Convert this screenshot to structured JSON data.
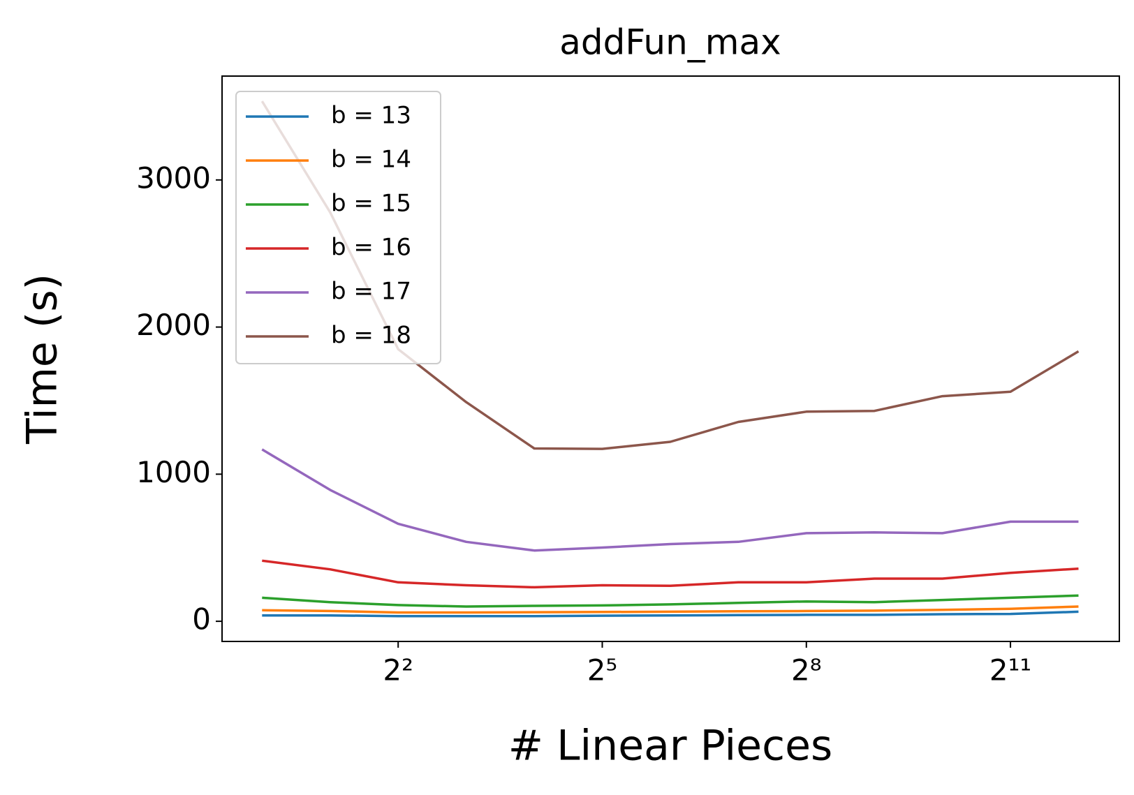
{
  "chart_data": {
    "type": "line",
    "title": "addFun_max",
    "x_label": "# Linear Pieces",
    "y_label": "Time (s)",
    "x": [
      1,
      2,
      4,
      8,
      16,
      32,
      64,
      128,
      256,
      512,
      1024,
      2048,
      4096
    ],
    "x_scale": "log",
    "x_log_base": 2,
    "xlim": [
      0.665,
      6210
    ],
    "xticks": [
      {
        "value": 4,
        "label": "2²"
      },
      {
        "value": 32,
        "label": "2⁵"
      },
      {
        "value": 256,
        "label": "2⁸"
      },
      {
        "value": 2048,
        "label": "2¹¹"
      }
    ],
    "ylim": [
      -137,
      3706
    ],
    "yticks": [
      0,
      1000,
      2000,
      3000
    ],
    "grid": false,
    "legend": "upper left",
    "series": [
      {
        "name": "b = 13",
        "color": "#1f77b4",
        "values": [
          40,
          40,
          35,
          35,
          35,
          38,
          40,
          42,
          44,
          44,
          48,
          50,
          65
        ]
      },
      {
        "name": "b = 14",
        "color": "#ff7f0e",
        "values": [
          75,
          70,
          60,
          60,
          62,
          63,
          65,
          68,
          70,
          72,
          78,
          85,
          100
        ]
      },
      {
        "name": "b = 15",
        "color": "#2ca02c",
        "values": [
          160,
          130,
          110,
          100,
          105,
          108,
          115,
          125,
          135,
          130,
          145,
          160,
          175
        ]
      },
      {
        "name": "b = 16",
        "color": "#d62728",
        "values": [
          412,
          353,
          265,
          245,
          231,
          245,
          241,
          265,
          265,
          290,
          290,
          329,
          358
        ]
      },
      {
        "name": "b = 17",
        "color": "#9467bd",
        "values": [
          1168,
          893,
          663,
          540,
          481,
          501,
          525,
          540,
          599,
          604,
          599,
          677,
          677
        ]
      },
      {
        "name": "b = 18",
        "color": "#8c564b",
        "values": [
          3535,
          2780,
          1850,
          1490,
          1175,
          1172,
          1220,
          1355,
          1425,
          1430,
          1530,
          1560,
          1835
        ]
      }
    ]
  }
}
